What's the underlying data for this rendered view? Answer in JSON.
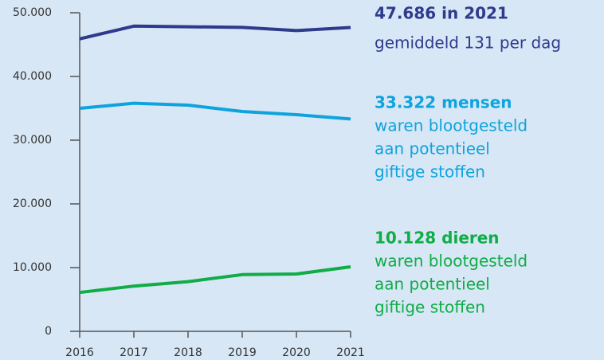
{
  "chart_data": {
    "type": "line",
    "x": [
      2016,
      2017,
      2018,
      2019,
      2020,
      2021
    ],
    "xlim": [
      2016,
      2021
    ],
    "xticks": [
      2016,
      2017,
      2018,
      2019,
      2020,
      2021
    ],
    "ylim": [
      0,
      50000
    ],
    "yticks": [
      0,
      {
        "value": 10000,
        "label": "10.000"
      },
      {
        "value": 20000,
        "label": "20.000"
      },
      {
        "value": 30000,
        "label": "30.000"
      },
      {
        "value": 40000,
        "label": "40.000"
      },
      {
        "value": 50000,
        "label": "50.000"
      }
    ],
    "grid": false,
    "series": [
      {
        "color": "#2e3a8c",
        "values": [
          45900,
          47900,
          47800,
          47700,
          47200,
          47686
        ]
      },
      {
        "color": "#0fa3de",
        "values": [
          35000,
          35800,
          35500,
          34500,
          34000,
          33322
        ]
      },
      {
        "color": "#10ac46",
        "values": [
          6100,
          7100,
          7800,
          8900,
          9000,
          10128
        ]
      }
    ],
    "annotations": [
      {
        "title": "47.686 in 2021",
        "lines": [
          "gemiddeld 131 per dag"
        ],
        "color": "#2e3a8c"
      },
      {
        "title": "33.322 mensen",
        "lines": [
          "waren blootgesteld",
          "aan potentieel",
          "giftige stoffen"
        ],
        "color": "#0fa3de"
      },
      {
        "title": "10.128 dieren",
        "lines": [
          "waren blootgesteld",
          "aan potentieel",
          "giftige stoffen"
        ],
        "color": "#10ac46"
      }
    ]
  }
}
